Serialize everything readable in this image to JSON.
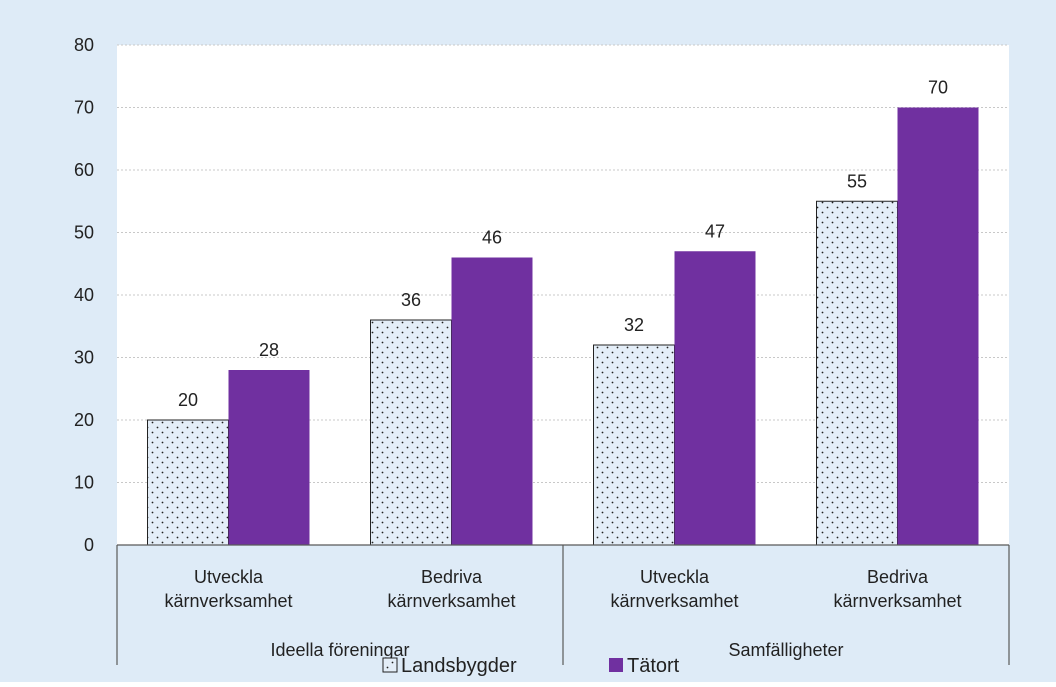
{
  "chart_data": {
    "type": "bar",
    "title": "",
    "xlabel": "",
    "ylabel": "",
    "ylim": [
      0,
      80
    ],
    "yticks": [
      0,
      10,
      20,
      30,
      40,
      50,
      60,
      70,
      80
    ],
    "grid": true,
    "legend_position": "bottom",
    "groups": [
      {
        "label": "Ideella föreningar",
        "categories": [
          [
            "Utveckla",
            "kärnverksamhet"
          ],
          [
            "Bedriva",
            "kärnverksamhet"
          ]
        ]
      },
      {
        "label": "Samfälligheter",
        "categories": [
          [
            "Utveckla",
            "kärnverksamhet"
          ],
          [
            "Bedriva",
            "kärnverksamhet"
          ]
        ]
      }
    ],
    "series": [
      {
        "name": "Landsbygder",
        "values": [
          20,
          36,
          32,
          55
        ],
        "color": "#e4eef8",
        "pattern": "dotted"
      },
      {
        "name": "Tätort",
        "values": [
          28,
          46,
          47,
          70
        ],
        "color": "#7030a0"
      }
    ],
    "colors": {
      "background": "#deebf7",
      "plot_background": "#ffffff",
      "grid": "#c8c8c8",
      "axis": "#595959"
    }
  }
}
